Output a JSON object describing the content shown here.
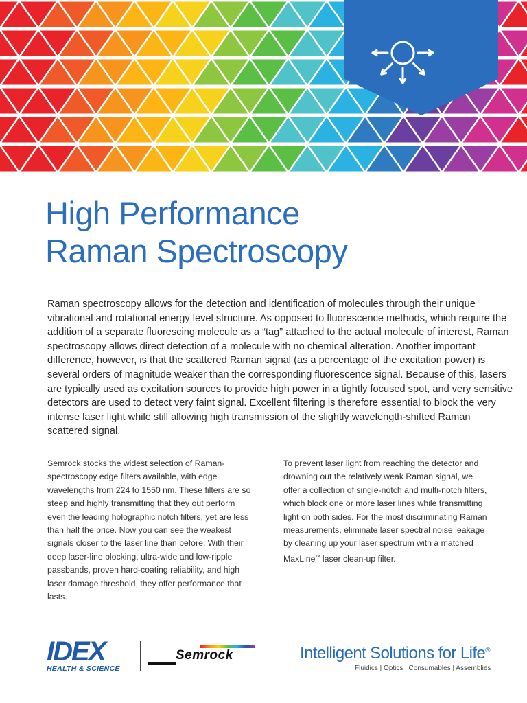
{
  "banner": {
    "colors": [
      "#e8232a",
      "#f05a28",
      "#f7941d",
      "#fcb514",
      "#f6d21c",
      "#8dc63f",
      "#5bbf46",
      "#4fc3c9",
      "#2ab2e3",
      "#2f7bc2",
      "#6b3fa0",
      "#9a3ea3",
      "#d0318f",
      "#e8232a"
    ],
    "badge_color": "#2a6ebd",
    "icon": "light-scatter-icon"
  },
  "title": {
    "line1": "High Performance",
    "line2": "Raman Spectroscopy"
  },
  "intro": "Raman spectroscopy allows for the detection and identification of molecules through their unique vibrational and rotational energy level structure. As opposed to fluorescence methods, which require the addition of a separate fluorescing molecule as a “tag” attached to the actual molecule of interest, Raman spectroscopy allows direct detection of a molecule with no chemical alteration. Another important difference, however, is that the scattered Raman signal (as a percentage of the excitation power) is several orders of magnitude weaker than the corresponding fluorescence signal. Because of this, lasers are typically used as excitation sources to provide high power in a tightly focused spot, and very sensitive detectors are used to detect very faint signal. Excellent filtering is therefore essential to block the very intense laser light while still allowing high transmission of the slightly wavelength-shifted Raman scattered signal.",
  "col_left": "Semrock stocks the widest selection of Raman-spectroscopy edge filters available, with edge wavelengths from 224 to 1550 nm. These filters are so steep and highly transmitting that they out perform even the leading holographic notch filters, yet are less than half the price. Now you can see the weakest signals closer to the laser line than before. With their deep laser-line blocking, ultra-wide and low-ripple passbands, proven hard-coating reliability, and high laser damage threshold, they offer performance that lasts.",
  "col_right": {
    "text_before": "To prevent laser light from reaching the detector and drowning out the relatively weak Raman signal, we offer a collection of single-notch and multi-notch filters, which block one or more laser lines while transmitting light on both sides. For the most discriminating Raman measurements, eliminate laser spectral noise leakage by cleaning up your laser spectrum with a matched MaxLine",
    "tm": "™",
    "text_after": " laser clean-up filter."
  },
  "footer": {
    "idex_logo": "IDEX",
    "idex_sub": "HEALTH & SCIENCE",
    "semrock": "Semrock",
    "tagline": "Intelligent Solutions for Life",
    "reg": "®",
    "subtag": "Fluidics | Optics | Consumables | Assemblies"
  }
}
